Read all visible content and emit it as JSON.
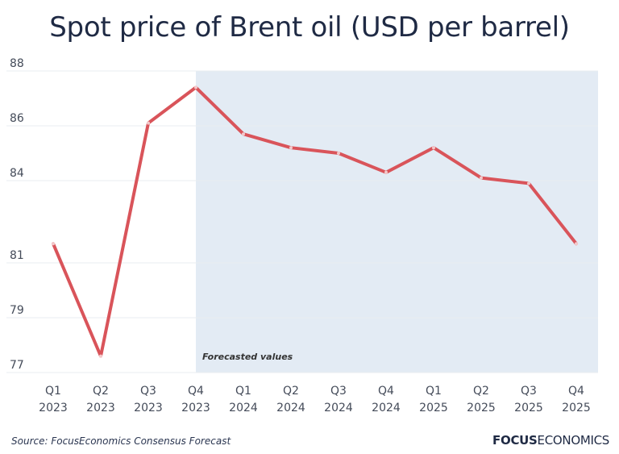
{
  "chart_data": {
    "type": "line",
    "title": "Spot price of Brent oil (USD per barrel)",
    "categories": [
      [
        "Q1",
        "2023"
      ],
      [
        "Q2",
        "2023"
      ],
      [
        "Q3",
        "2023"
      ],
      [
        "Q4",
        "2023"
      ],
      [
        "Q1",
        "2024"
      ],
      [
        "Q2",
        "2024"
      ],
      [
        "Q3",
        "2024"
      ],
      [
        "Q4",
        "2024"
      ],
      [
        "Q1",
        "2025"
      ],
      [
        "Q2",
        "2025"
      ],
      [
        "Q3",
        "2025"
      ],
      [
        "Q4",
        "2025"
      ]
    ],
    "series": [
      {
        "name": "Spot price of Brent oil",
        "color": "#d9545a",
        "values": [
          81.7,
          77.6,
          86.1,
          87.4,
          85.7,
          85.2,
          85.0,
          84.3,
          85.2,
          84.1,
          83.9,
          81.7
        ]
      }
    ],
    "y_ticks": [
      77,
      79,
      81,
      84,
      86,
      88
    ],
    "ylim": [
      77,
      88
    ],
    "grid": true,
    "forecast_region": {
      "start_index": 3,
      "end_index": 11,
      "label": "Forecasted values",
      "color": "#e3ebf4"
    },
    "xlabel": "",
    "ylabel": ""
  },
  "footer": {
    "source": "Source: FocusEconomics Consensus Forecast",
    "brand_bold": "FOCUS",
    "brand_regular": "ECONOMICS"
  }
}
